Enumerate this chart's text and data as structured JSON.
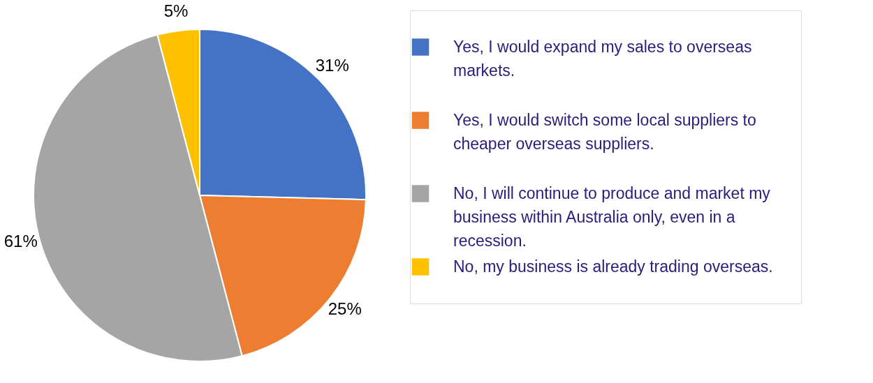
{
  "chart_data": {
    "type": "pie",
    "categories": [
      "Yes, I would expand my sales to overseas markets.",
      "Yes, I would switch some local suppliers to cheaper overseas suppliers.",
      "No, I will continue to produce and market my business within Australia only, even in a recession.",
      "No, my business is already trading overseas."
    ],
    "values": [
      31,
      25,
      61,
      5
    ],
    "value_labels": [
      "31%",
      "25%",
      "61%",
      "5%"
    ],
    "colors": [
      "#4472c4",
      "#ed7d31",
      "#a5a5a5",
      "#ffc000"
    ],
    "legend": "right"
  }
}
